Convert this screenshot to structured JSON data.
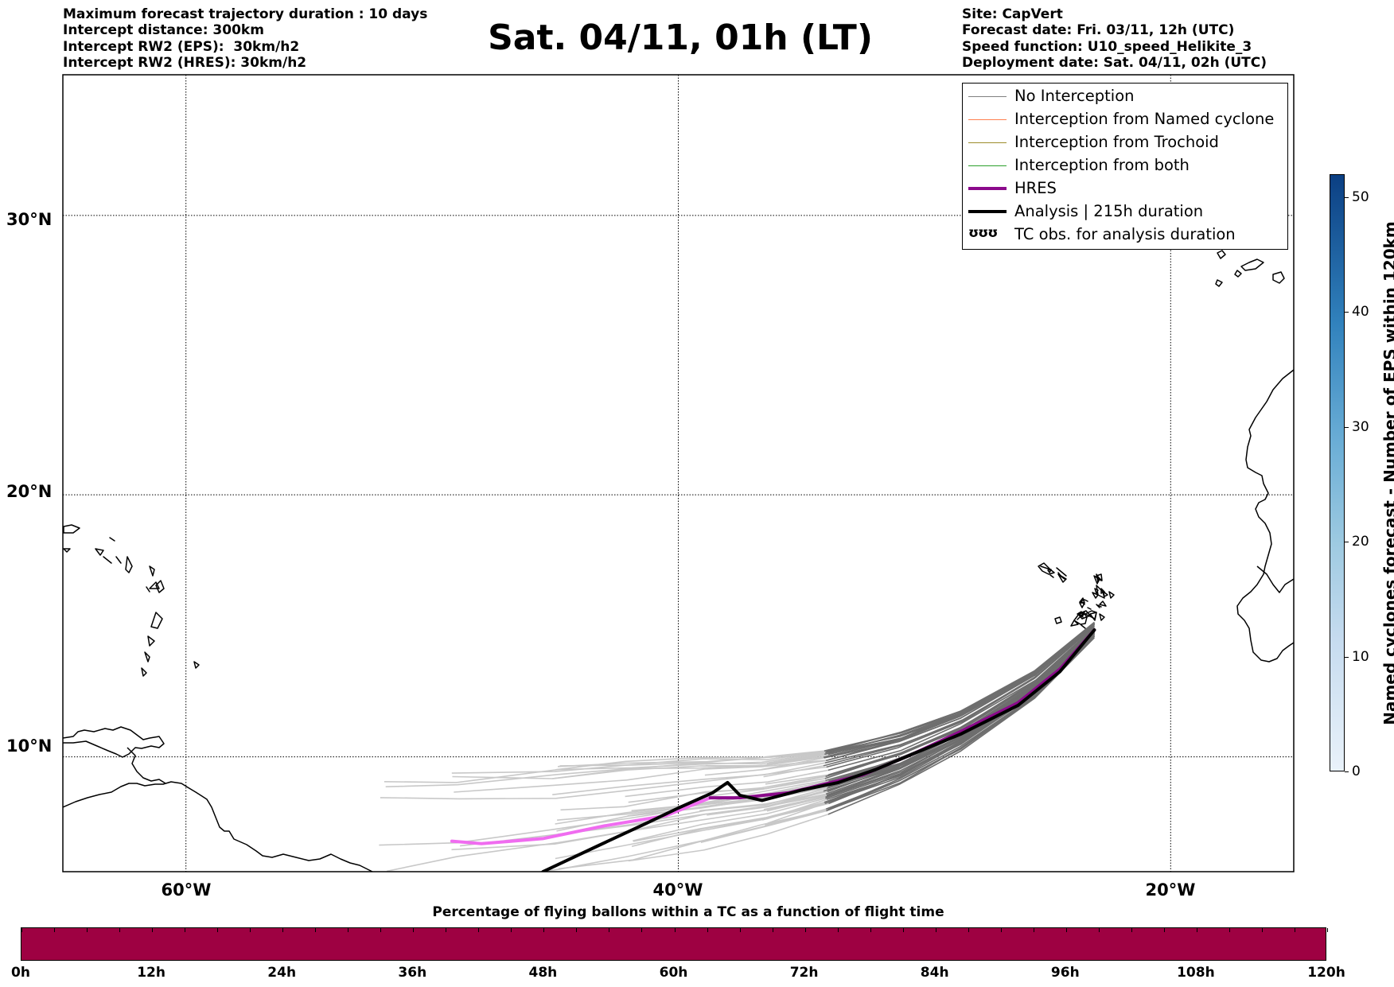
{
  "header_left": [
    "Maximum forecast trajectory duration : 10 days",
    "Intercept distance: 300km",
    "Intercept RW2 (EPS):  30km/h2",
    "Intercept RW2 (HRES): 30km/h2"
  ],
  "title": "Sat. 04/11, 01h (LT)",
  "header_right": [
    "Site: CapVert",
    "Forecast date: Fri. 03/11, 12h (UTC)",
    "Speed function: U10_speed_Helikite_3",
    "Deployment date: Sat. 04/11, 02h (UTC)"
  ],
  "map": {
    "lon_range": [
      -65,
      -15
    ],
    "lat_range": [
      5.5,
      34.7
    ],
    "lat_labels": [
      {
        "lat": 30,
        "text": "30°N"
      },
      {
        "lat": 20,
        "text": "20°N"
      },
      {
        "lat": 10,
        "text": "10°N"
      }
    ],
    "lon_labels": [
      {
        "lon": -60,
        "text": "60°W"
      },
      {
        "lon": -40,
        "text": "40°W"
      },
      {
        "lon": -20,
        "text": "20°W"
      }
    ],
    "launch_site": {
      "lon": -23.1,
      "lat": 14.9
    },
    "analysis_track": [
      [
        -23.1,
        14.9
      ],
      [
        -24.5,
        13.3
      ],
      [
        -26.2,
        12.0
      ],
      [
        -28.5,
        10.9
      ],
      [
        -30.5,
        10.1
      ],
      [
        -32.0,
        9.5
      ],
      [
        -33.5,
        9.0
      ],
      [
        -35.0,
        8.7
      ],
      [
        -36.6,
        8.3
      ],
      [
        -37.5,
        8.5
      ],
      [
        -38.0,
        9.0
      ],
      [
        -38.6,
        8.6
      ],
      [
        -40.0,
        8.0
      ],
      [
        -41.3,
        7.4
      ],
      [
        -43.3,
        6.5
      ],
      [
        -45.5,
        5.5
      ]
    ],
    "hres_track": [
      [
        -23.1,
        14.9
      ],
      [
        -24.5,
        13.4
      ],
      [
        -26.2,
        12.1
      ],
      [
        -28.5,
        11.0
      ],
      [
        -30.5,
        10.1
      ],
      [
        -32.5,
        9.3
      ],
      [
        -35.5,
        8.6
      ],
      [
        -37.5,
        8.4
      ],
      [
        -38.7,
        8.4
      ],
      [
        -40.5,
        7.7
      ],
      [
        -43.0,
        7.3
      ],
      [
        -45.5,
        6.8
      ],
      [
        -48.0,
        6.6
      ],
      [
        -49.2,
        6.7
      ]
    ],
    "colors": {
      "no_interception": "#808080",
      "named_cyclone": "#ff7f50",
      "trochoid": "#9c8c2b",
      "both": "#2ca02c",
      "hres": "#8b0a8b",
      "hres_tail": "#f06cf0",
      "analysis": "#000000"
    }
  },
  "legend": [
    {
      "label": "No Interception",
      "style": "no_interception"
    },
    {
      "label": "Interception from Named cyclone",
      "style": "named_cyclone"
    },
    {
      "label": "Interception from Trochoid",
      "style": "trochoid"
    },
    {
      "label": "Interception from both",
      "style": "both"
    },
    {
      "label": "HRES",
      "style": "hres"
    },
    {
      "label": "Analysis | 215h duration",
      "style": "analysis"
    },
    {
      "label": "TC obs. for analysis duration",
      "style": "tc_symbol",
      "symbol": "ʊʊʊ"
    }
  ],
  "colorbar_vertical": {
    "label": "Named cyclones forecast - Number of EPS within 120km",
    "min": 0,
    "max": 52,
    "ticks": [
      0,
      10,
      20,
      30,
      40,
      50
    ]
  },
  "colorbar_horizontal": {
    "title": "Percentage of flying ballons within a TC as a function of flight time",
    "fill_color": "#9e0142",
    "ticks": [
      "0h",
      "12h",
      "24h",
      "36h",
      "48h",
      "60h",
      "72h",
      "84h",
      "96h",
      "108h",
      "120h"
    ]
  }
}
